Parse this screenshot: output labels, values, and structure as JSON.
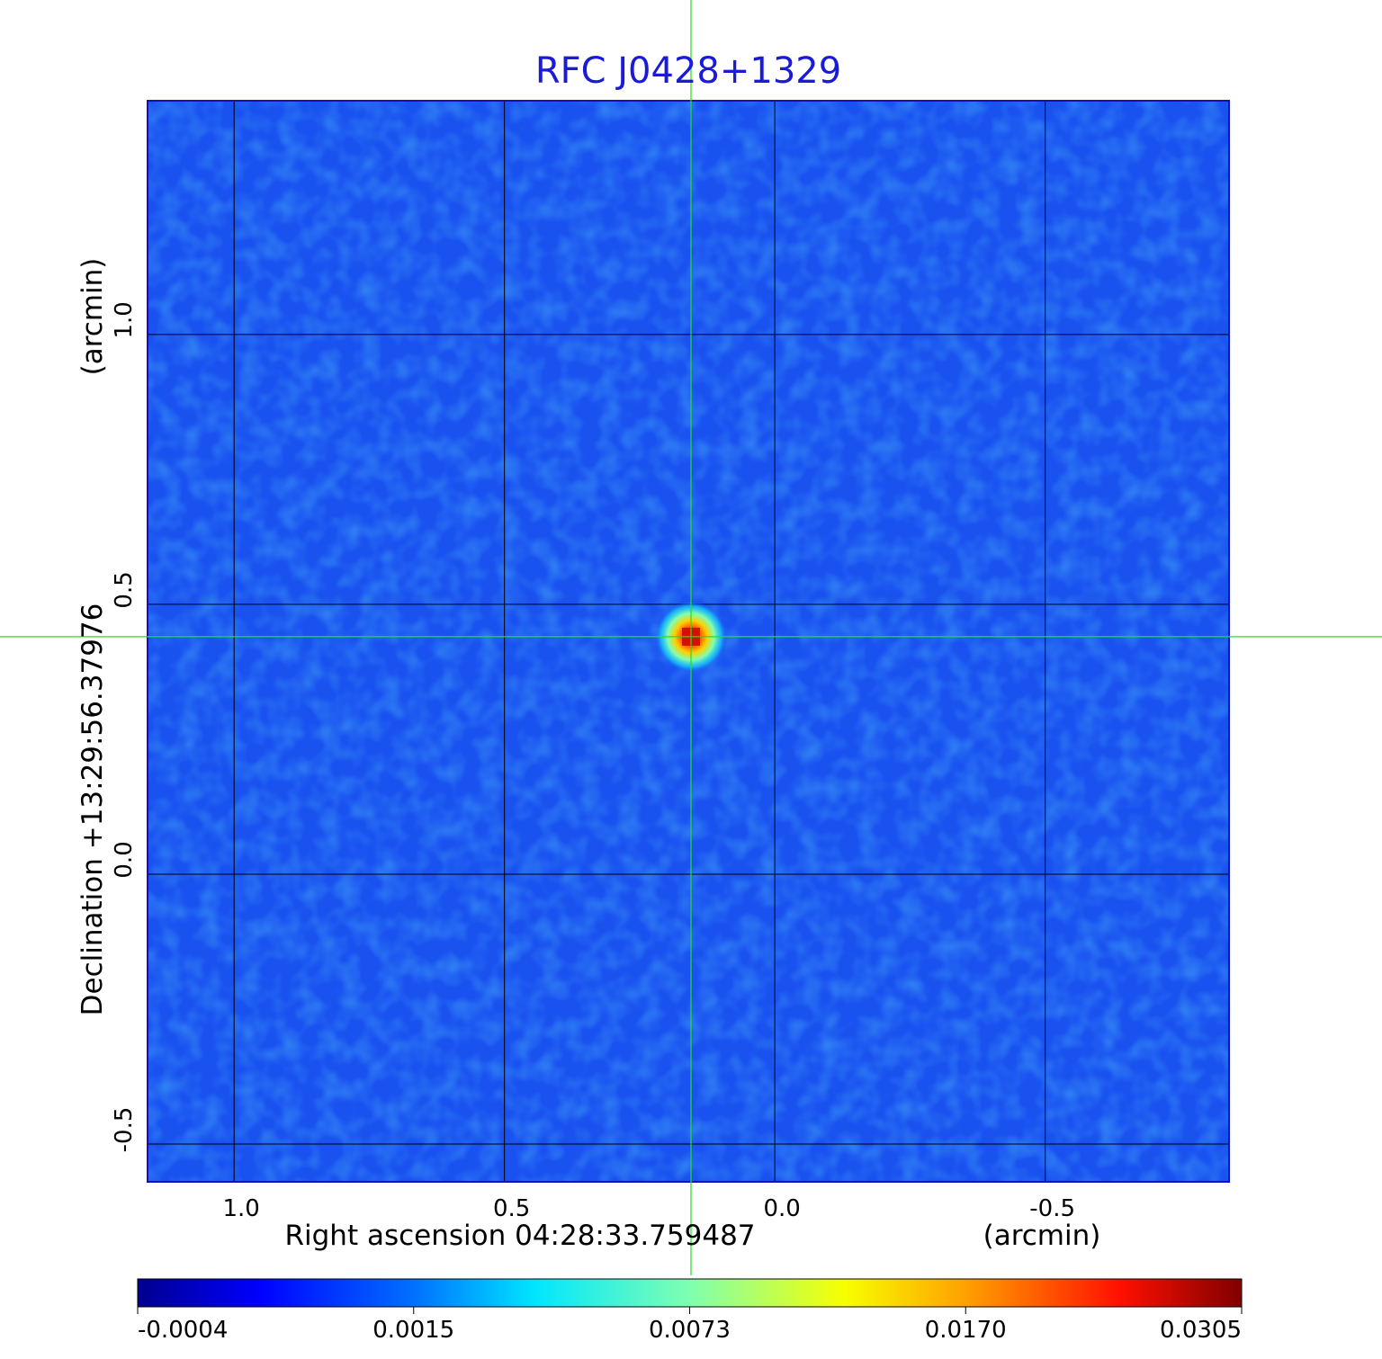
{
  "chart_data": {
    "type": "heatmap",
    "title": "RFC J0428+1329",
    "x_axis": {
      "label": "Right ascension  04:28:33.759487",
      "unit": "(arcmin)",
      "range": [
        1.16,
        -0.84
      ],
      "ticks": [
        {
          "value": 1.0,
          "label": "1.0"
        },
        {
          "value": 0.5,
          "label": "0.5"
        },
        {
          "value": 0.0,
          "label": "0.0"
        },
        {
          "value": -0.5,
          "label": "-0.5"
        }
      ]
    },
    "y_axis": {
      "label": "Declination  +13:29:56.37976",
      "unit": "(arcmin)",
      "range": [
        -0.57,
        1.433
      ],
      "ticks": [
        {
          "value": -0.5,
          "label": "-0.5"
        },
        {
          "value": 0.0,
          "label": "0.0"
        },
        {
          "value": 0.5,
          "label": "0.5"
        },
        {
          "value": 1.0,
          "label": "1.0"
        }
      ]
    },
    "grid": true,
    "crosshair": {
      "x": 0.155,
      "y": 0.44
    },
    "source_peak": {
      "x": 0.155,
      "y": 0.44,
      "value": 0.0305
    },
    "colorbar": {
      "orientation": "horizontal",
      "placement": "bottom",
      "ticks": [
        "-0.0004",
        "0.0015",
        "0.0073",
        "0.0170",
        "0.0305"
      ]
    },
    "colors": {
      "background": "#1a52f0",
      "title": "#1a1ad8",
      "crosshair": "#22e022",
      "grid": "#000000"
    }
  }
}
